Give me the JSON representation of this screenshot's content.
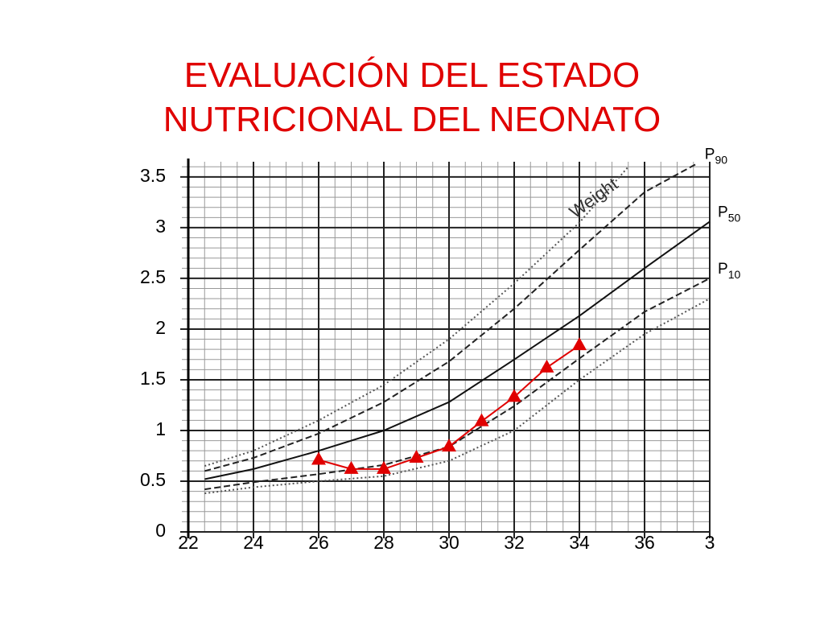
{
  "chart_data": {
    "type": "line",
    "title_lines": [
      "EVALUACIÓN DEL ESTADO",
      "NUTRICIONAL DEL NEONATO"
    ],
    "annotation": "Weight",
    "xlim": [
      22,
      38
    ],
    "xticks": [
      22,
      24,
      26,
      28,
      30,
      32,
      34,
      36,
      {
        "value": 38,
        "label": "3"
      }
    ],
    "ylim": [
      0,
      3.65
    ],
    "yticks": [
      0,
      0.5,
      1,
      1.5,
      2,
      2.5,
      3,
      3.5
    ],
    "minor_xticks": [
      22.5,
      23,
      23.5,
      24.5,
      25,
      25.5,
      26.5,
      27,
      27.5,
      28.5,
      29,
      29.5,
      30.5,
      31,
      31.5,
      32.5,
      33,
      33.5,
      34.5,
      35,
      35.5,
      36.5,
      37,
      37.5
    ],
    "minor_yticks": [
      0.1,
      0.2,
      0.3,
      0.4,
      0.6,
      0.7,
      0.8,
      0.9,
      1.1,
      1.2,
      1.3,
      1.4,
      1.6,
      1.7,
      1.8,
      1.9,
      2.1,
      2.2,
      2.3,
      2.4,
      2.6,
      2.7,
      2.8,
      2.9,
      3.1,
      3.2,
      3.3,
      3.4,
      3.6
    ],
    "grid": true,
    "series": [
      {
        "style": "dotted",
        "color": "#555555",
        "x": [
          22.5,
          24,
          26,
          28,
          30,
          32,
          34,
          35.5
        ],
        "values": [
          0.65,
          0.8,
          1.1,
          1.45,
          1.9,
          2.45,
          3.05,
          3.6
        ]
      },
      {
        "label": {
          "base": "P",
          "sub": "90"
        },
        "style": "dashed",
        "color": "#222222",
        "x": [
          22.5,
          24,
          26,
          28,
          30,
          32,
          34,
          36,
          37.6
        ],
        "values": [
          0.6,
          0.73,
          0.97,
          1.28,
          1.68,
          2.2,
          2.78,
          3.35,
          3.63
        ]
      },
      {
        "label": {
          "base": "P",
          "sub": "50"
        },
        "style": "solid",
        "color": "#111111",
        "x": [
          22.5,
          24,
          26,
          28,
          30,
          32,
          34,
          36,
          38
        ],
        "values": [
          0.52,
          0.62,
          0.8,
          1.0,
          1.28,
          1.7,
          2.13,
          2.6,
          3.06
        ]
      },
      {
        "label": {
          "base": "P",
          "sub": "10"
        },
        "style": "dashed",
        "color": "#222222",
        "x": [
          22.5,
          24,
          26,
          28,
          30,
          32,
          34,
          36,
          38
        ],
        "values": [
          0.42,
          0.49,
          0.57,
          0.66,
          0.84,
          1.24,
          1.71,
          2.17,
          2.5
        ]
      },
      {
        "style": "dotted",
        "color": "#555555",
        "x": [
          22.5,
          24,
          26,
          28,
          30,
          32,
          34,
          36,
          38
        ],
        "values": [
          0.38,
          0.44,
          0.5,
          0.55,
          0.7,
          1.0,
          1.5,
          1.95,
          2.3
        ]
      },
      {
        "style": "solid",
        "color": "#e00000",
        "marker": "triangle",
        "x": [
          26,
          27,
          28,
          29,
          30,
          31,
          32,
          33,
          34
        ],
        "values": [
          0.71,
          0.62,
          0.62,
          0.73,
          0.84,
          1.09,
          1.33,
          1.62,
          1.84
        ]
      }
    ]
  }
}
